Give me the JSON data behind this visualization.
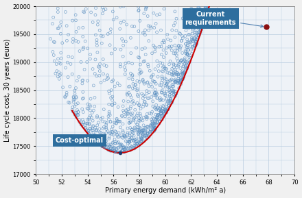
{
  "title": "",
  "xlabel": "Primary energy demand (kWh/m² a)",
  "ylabel": "Life cycle cost, 30 years (euro)",
  "xlim": [
    50,
    70
  ],
  "ylim": [
    17000,
    20000
  ],
  "yticks": [
    17000,
    17500,
    18000,
    18500,
    19000,
    19500,
    20000
  ],
  "xticks": [
    50,
    52,
    54,
    56,
    58,
    60,
    62,
    64,
    66,
    68,
    70
  ],
  "scatter_edge": "#5a8fc0",
  "curve_color": "#cc0000",
  "cost_optimal_point": [
    56.5,
    17380
  ],
  "current_req_point": [
    67.8,
    19630
  ],
  "cost_optimal_label": "Cost-optimal",
  "current_req_label": "Current\nrequirements",
  "annotation_box_color": "#2e6e9e",
  "annotation_text_color": "#ffffff",
  "background_color": "#eef2f7",
  "grid_color": "#b8cce0",
  "fig_bg": "#f0f0f0"
}
